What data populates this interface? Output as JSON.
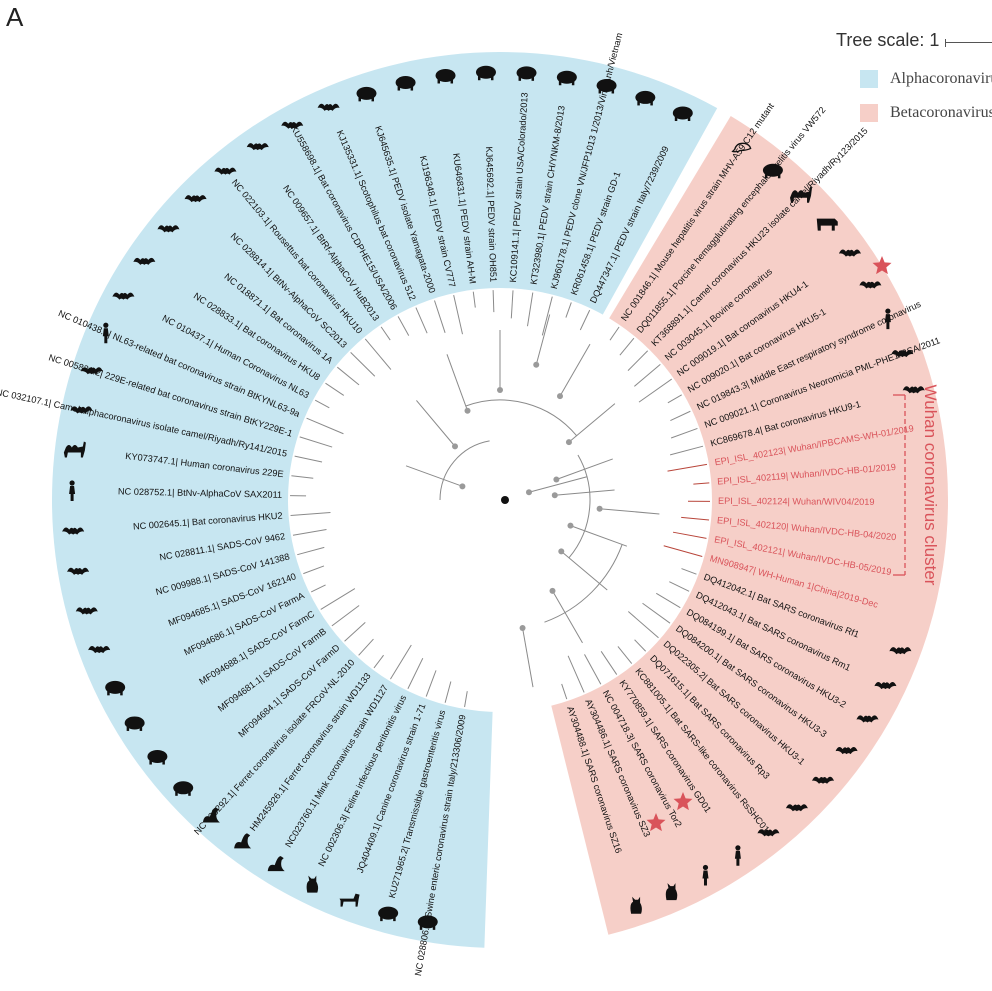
{
  "panel_label": "A",
  "tree_scale": "Tree scale: 1",
  "legend": [
    {
      "label": "Alphacoronavirus",
      "color": "#c7e6f1"
    },
    {
      "label": "Betacoronavirus",
      "color": "#f6cfc8"
    }
  ],
  "cluster_label": "Wuhan coronavirus cluster",
  "cluster_color": "#d9535a",
  "alpha_leaves": [
    {
      "label": "NC 028806.1| Swine enteric coronavirus strain Italy/213306/2009",
      "host": "pig"
    },
    {
      "label": "KU271965.2| Transmissible gastroenteritis virus",
      "host": "pig"
    },
    {
      "label": "JQ404409.1| Canine coronavirus strain 1-71",
      "host": "dog"
    },
    {
      "label": "NC 002306.3| Feline infectious peritonitis virus",
      "host": "cat"
    },
    {
      "label": "NC023760.1| Mink coronavirus strain WD1127",
      "host": "mink"
    },
    {
      "label": "HM245926.1| Ferret coronavirus strain WD1133",
      "host": "mink"
    },
    {
      "label": "NC 030292.1| Ferret coronavirus isolate FRCoV-NL-2010",
      "host": "mink"
    },
    {
      "label": "MF094684.1| SADS-CoV FarmD",
      "host": "pig"
    },
    {
      "label": "MF094681.1| SADS-CoV FarmB",
      "host": "pig"
    },
    {
      "label": "MF094688.1| SADS-CoV FarmC",
      "host": "pig"
    },
    {
      "label": "MF094686.1| SADS-CoV FarmA",
      "host": "pig"
    },
    {
      "label": "MF094685.1| SADS-CoV 162140",
      "host": "bat"
    },
    {
      "label": "NC 009988.1| SADS-CoV 141388",
      "host": "bat"
    },
    {
      "label": "NC 028811.1| SADS-CoV 9462",
      "host": "bat"
    },
    {
      "label": "NC 002645.1| Bat coronavirus HKU2",
      "host": "bat"
    },
    {
      "label": "NC 028752.1| BtNv-AlphaCoV SAX2011",
      "host": "human"
    },
    {
      "label": "KY073747.1| Human coronavirus 229E",
      "host": "camel"
    },
    {
      "label": "NC 032107.1| Camel alphacoronavirus isolate camel/Riyadh/Ry141/2015",
      "host": "bat"
    },
    {
      "label": "NC 005831.2| 229E-related bat coronavirus strain BtKY229E-1",
      "host": "bat"
    },
    {
      "label": "NC 010438.1| NL63-related bat coronavirus strain BtKYNL63-9a",
      "host": "human"
    },
    {
      "label": "NC 010437.1| Human Coronavirus NL63",
      "host": "bat"
    },
    {
      "label": "NC 028833.1| Bat coronavirus HKU8",
      "host": "bat"
    },
    {
      "label": "NC 018871.1| Bat coronavirus 1A",
      "host": "bat"
    },
    {
      "label": "NC 028814.1| BtNv-AlphaCoV SC2013",
      "host": "bat"
    },
    {
      "label": "NC 022103.1| Rousettus bat coronavirus HKU10",
      "host": "bat"
    },
    {
      "label": "NC 009657.1| BtRf-AlphaCoV HuB2013",
      "host": "bat"
    },
    {
      "label": "KU558698.1| Bat coronavirus CDPHE15/USA/2006",
      "host": "bat"
    },
    {
      "label": "KJ135331.1| Scotophilus bat coronavirus 512",
      "host": "bat"
    },
    {
      "label": "KJ645635.1| PEDV isolate Yamagata-2000",
      "host": "pig"
    },
    {
      "label": "KJ196348.1| PEDV strain CV777",
      "host": "pig"
    },
    {
      "label": "KU646831.1| PEDV strain AH-M",
      "host": "pig"
    },
    {
      "label": "KJ645692.1| PEDV strain OH851",
      "host": "pig"
    },
    {
      "label": "KC109141.1| PEDV strain USA/Colorado/2013",
      "host": "pig"
    },
    {
      "label": "KT323980.1| PEDV strain CH/YNKM-8/2013",
      "host": "pig"
    },
    {
      "label": "KJ960178.1| PEDV clone VN/JFP1013 1/2013/Vinh Anh/Vietnam",
      "host": "pig"
    },
    {
      "label": "KR061458.1| PEDV strain GD-1",
      "host": "pig"
    },
    {
      "label": "DQ447347.1| PEDV strain Italy/7239/2009",
      "host": "pig"
    }
  ],
  "beta_leaves": [
    {
      "label": "NC 001846.1| Mouse hepatitis virus strain MHV-A59 C12 mutant",
      "host": "mouse"
    },
    {
      "label": "DQ011855.1| Porcine hemagglutinating encephalomyelitis virus VW572",
      "host": "pig"
    },
    {
      "label": "KT368891.1| Camel coronavirus HKU23 isolate camel/Riyadh/Ry123/2015",
      "host": "camel"
    },
    {
      "label": "NC 003045.1| Bovine coronavirus",
      "host": "cow"
    },
    {
      "label": "NC 009019.1| Bat coronavirus HKU4-1",
      "host": "bat"
    },
    {
      "label": "NC 009020.1| Bat coronavirus HKU5-1",
      "host": "bat"
    },
    {
      "label": "NC 019843.3| Middle East respiratory syndrome coronavirus",
      "host": "human"
    },
    {
      "label": "NC 009021.1| Coronavirus Neoromicia PML-PHE1/RSA/2011",
      "host": "bat"
    },
    {
      "label": "KC869678.4| Bat coronavirus HKU9-1",
      "host": "bat"
    },
    {
      "label": "EPI_ISL_402123| Wuhan/IPBCAMS-WH-01/2019",
      "host": ""
    },
    {
      "label": "EPI_ISL_402119| Wuhan/IVDC-HB-01/2019",
      "host": ""
    },
    {
      "label": "EPI_ISL_402124| Wuhan/WIV04/2019",
      "host": ""
    },
    {
      "label": "EPI_ISL_402120| Wuhan/IVDC-HB-04/2020",
      "host": ""
    },
    {
      "label": "EPI_ISL_402121| Wuhan/IVDC-HB-05/2019",
      "host": ""
    },
    {
      "label": "MN908947| WH-Human 1|China|2019-Dec",
      "host": ""
    },
    {
      "label": "DQ412042.1| Bat SARS coronavirus Rf1",
      "host": "bat"
    },
    {
      "label": "DQ412043.1| Bat SARS coronavirus Rm1",
      "host": "bat"
    },
    {
      "label": "DQ084199.1| Bat SARS coronavirus HKU3-2",
      "host": "bat"
    },
    {
      "label": "DQ084200.1| Bat SARS coronavirus HKU3-3",
      "host": "bat"
    },
    {
      "label": "DQ022305.2| Bat SARS coronavirus HKU3-1",
      "host": "bat"
    },
    {
      "label": "DQ071615.1| Bat SARS coronavirus Rp3",
      "host": "bat"
    },
    {
      "label": "KC881005.1| Bat SARS-like coronavirus RsSHC014",
      "host": "bat"
    },
    {
      "label": "KY770859.1| SARS coronavirus GD01",
      "host": "human"
    },
    {
      "label": "NC 004718.3| SARS coronavirus Tor2",
      "host": "human"
    },
    {
      "label": "AY304486.1| SARS coronavirus SZ3",
      "host": "cat"
    },
    {
      "label": "AY304488.1| SARS coronavirus SZ16",
      "host": "cat"
    }
  ]
}
